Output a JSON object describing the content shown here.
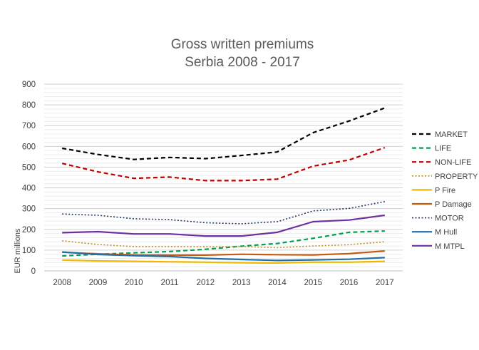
{
  "chart_data": {
    "type": "line",
    "title_lines": [
      "Gross written premiums",
      "Serbia 2008 - 2017"
    ],
    "xlabel": "",
    "ylabel": "EUR millions",
    "ylim": [
      0,
      900
    ],
    "yticks": [
      0,
      100,
      200,
      300,
      400,
      500,
      600,
      700,
      800,
      900
    ],
    "grid": "horizontal",
    "legend_position": "right",
    "x": [
      "2008",
      "2009",
      "2010",
      "2011",
      "2012",
      "2013",
      "2014",
      "2015",
      "2016",
      "2017"
    ],
    "series": [
      {
        "name": "MARKET",
        "color": "#000000",
        "dash": "dashed",
        "values": [
          591,
          561,
          537,
          547,
          541,
          556,
          573,
          666,
          722,
          785
        ]
      },
      {
        "name": "LIFE",
        "color": "#00a050",
        "dash": "dashed",
        "values": [
          72,
          80,
          87,
          93,
          104,
          119,
          132,
          157,
          186,
          192
        ]
      },
      {
        "name": "NON-LIFE",
        "color": "#c00000",
        "dash": "dashed",
        "values": [
          518,
          477,
          446,
          452,
          435,
          435,
          442,
          505,
          534,
          594
        ]
      },
      {
        "name": "PROPERTY",
        "color": "#c98a1d",
        "dash": "dotted",
        "values": [
          145,
          127,
          117,
          117,
          116,
          117,
          112,
          120,
          126,
          140
        ]
      },
      {
        "name": "P Fire",
        "color": "#f2b800",
        "dash": "solid",
        "values": [
          52,
          48,
          46,
          44,
          42,
          39,
          38,
          42,
          42,
          46
        ]
      },
      {
        "name": "P Damage",
        "color": "#c55a11",
        "dash": "solid",
        "values": [
          90,
          82,
          77,
          76,
          76,
          80,
          78,
          77,
          83,
          96
        ]
      },
      {
        "name": "MOTOR",
        "color": "#1f3864",
        "dash": "dotted",
        "values": [
          274,
          268,
          251,
          247,
          232,
          227,
          237,
          289,
          301,
          334
        ]
      },
      {
        "name": "M Hull",
        "color": "#1f6fa8",
        "dash": "solid",
        "values": [
          91,
          79,
          73,
          69,
          60,
          55,
          50,
          53,
          56,
          64
        ]
      },
      {
        "name": "M MTPL",
        "color": "#7030a0",
        "dash": "solid",
        "values": [
          184,
          189,
          178,
          178,
          168,
          168,
          186,
          237,
          245,
          268
        ]
      }
    ]
  }
}
